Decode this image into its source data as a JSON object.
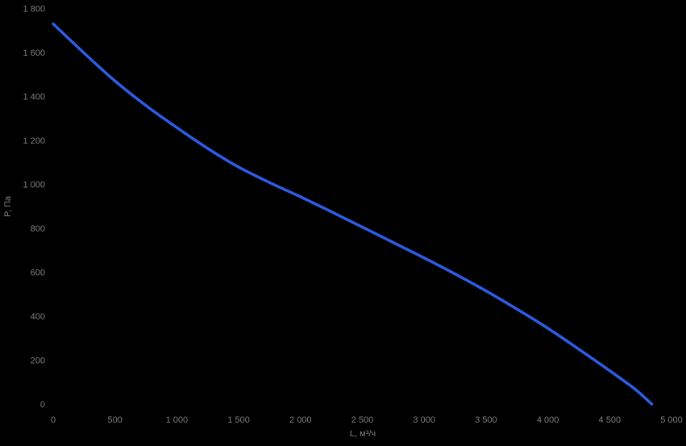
{
  "chart_data": {
    "type": "line",
    "title": "",
    "xlabel": "L, м³/ч",
    "ylabel": "P, Па",
    "xlim": [
      0,
      5000
    ],
    "ylim": [
      0,
      1800
    ],
    "grid": false,
    "legend_position": "none",
    "background_color": "#000000",
    "text_color": "#7f7f7f",
    "line_color": "#2e5ce6",
    "line_width": 3.5,
    "xticks": [
      {
        "value": 0,
        "label": "0"
      },
      {
        "value": 500,
        "label": "500"
      },
      {
        "value": 1000,
        "label": "1 000"
      },
      {
        "value": 1500,
        "label": "1 500"
      },
      {
        "value": 2000,
        "label": "2 000"
      },
      {
        "value": 2500,
        "label": "2 500"
      },
      {
        "value": 3000,
        "label": "3 000"
      },
      {
        "value": 3500,
        "label": "3 500"
      },
      {
        "value": 4000,
        "label": "4 000"
      },
      {
        "value": 4500,
        "label": "4 500"
      },
      {
        "value": 5000,
        "label": "5 000"
      }
    ],
    "yticks": [
      {
        "value": 0,
        "label": "0"
      },
      {
        "value": 200,
        "label": "200"
      },
      {
        "value": 400,
        "label": "400"
      },
      {
        "value": 600,
        "label": "600"
      },
      {
        "value": 800,
        "label": "800"
      },
      {
        "value": 1000,
        "label": "1 000"
      },
      {
        "value": 1200,
        "label": "1 200"
      },
      {
        "value": 1400,
        "label": "1 400"
      },
      {
        "value": 1600,
        "label": "1 600"
      },
      {
        "value": 1800,
        "label": "1 800"
      }
    ],
    "series": [
      {
        "points": [
          [
            0,
            1730
          ],
          [
            250,
            1597
          ],
          [
            500,
            1470
          ],
          [
            750,
            1358
          ],
          [
            1000,
            1258
          ],
          [
            1250,
            1163
          ],
          [
            1500,
            1078
          ],
          [
            1750,
            1008
          ],
          [
            2000,
            943
          ],
          [
            2250,
            875
          ],
          [
            2500,
            805
          ],
          [
            2750,
            735
          ],
          [
            3000,
            665
          ],
          [
            3250,
            592
          ],
          [
            3500,
            515
          ],
          [
            3750,
            432
          ],
          [
            4000,
            345
          ],
          [
            4250,
            250
          ],
          [
            4500,
            152
          ],
          [
            4700,
            70
          ],
          [
            4840,
            0
          ]
        ]
      }
    ]
  }
}
